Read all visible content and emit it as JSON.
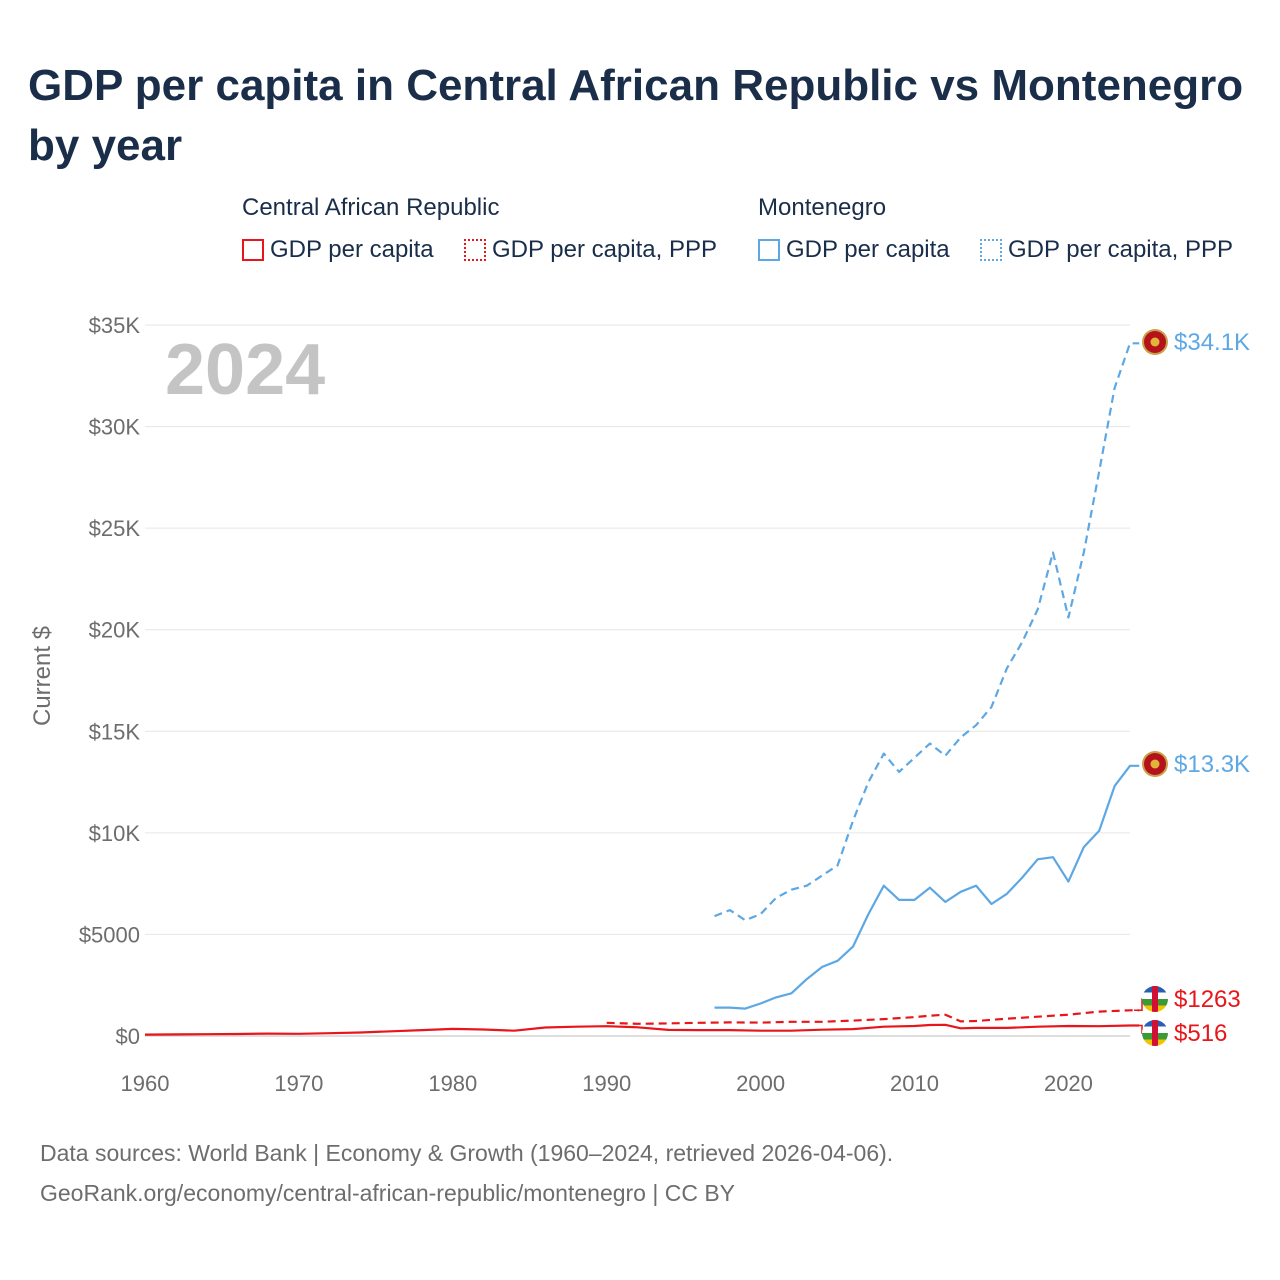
{
  "chart_data": {
    "type": "line",
    "title": "GDP per capita in Central African Republic vs Montenegro by year",
    "ylabel": "Current $",
    "xlabel": "",
    "xlim": [
      1960,
      2025
    ],
    "ylim": [
      0,
      35000
    ],
    "x_ticks": [
      1960,
      1970,
      1980,
      1990,
      2000,
      2010,
      2020
    ],
    "x_tick_labels": [
      "1960",
      "1970",
      "1980",
      "1990",
      "2000",
      "2010",
      "2020"
    ],
    "y_ticks": [
      0,
      5000,
      10000,
      15000,
      20000,
      25000,
      30000,
      35000
    ],
    "y_tick_labels": [
      "$0",
      "$5000",
      "$10K",
      "$15K",
      "$20K",
      "$25K",
      "$30K",
      "$35K"
    ],
    "year_watermark": "2024",
    "legend": {
      "groups": [
        {
          "name": "Central African Republic",
          "color": "#e8161b",
          "items": [
            "GDP per capita",
            "GDP per capita, PPP"
          ]
        },
        {
          "name": "Montenegro",
          "color": "#5da8e4",
          "items": [
            "GDP per capita",
            "GDP per capita, PPP"
          ]
        }
      ]
    },
    "series": [
      {
        "name": "Central African Republic – GDP per capita",
        "color": "#e8161b",
        "dash": false,
        "x": [
          1960,
          1962,
          1964,
          1966,
          1968,
          1970,
          1972,
          1974,
          1976,
          1978,
          1980,
          1982,
          1984,
          1986,
          1988,
          1990,
          1992,
          1994,
          1996,
          1998,
          2000,
          2002,
          2004,
          2006,
          2008,
          2010,
          2011,
          2012,
          2013,
          2014,
          2016,
          2018,
          2020,
          2022,
          2024
        ],
        "y": [
          70,
          80,
          90,
          100,
          120,
          110,
          140,
          170,
          230,
          290,
          350,
          320,
          260,
          420,
          460,
          480,
          430,
          300,
          290,
          290,
          260,
          260,
          310,
          340,
          460,
          490,
          540,
          550,
          380,
          400,
          400,
          460,
          490,
          480,
          516
        ],
        "end_label": "$516"
      },
      {
        "name": "Central African Republic – GDP per capita, PPP",
        "color": "#e8161b",
        "dash": true,
        "x": [
          1990,
          1992,
          1994,
          1996,
          1998,
          2000,
          2002,
          2004,
          2006,
          2008,
          2010,
          2011,
          2012,
          2013,
          2014,
          2016,
          2018,
          2020,
          2022,
          2024
        ],
        "y": [
          650,
          600,
          620,
          650,
          670,
          660,
          700,
          700,
          760,
          830,
          930,
          1000,
          1050,
          720,
          740,
          850,
          950,
          1050,
          1200,
          1263
        ],
        "end_label": "$1263"
      },
      {
        "name": "Montenegro – GDP per capita",
        "color": "#5da8e4",
        "dash": false,
        "x": [
          1997,
          1998,
          1999,
          2000,
          2001,
          2002,
          2003,
          2004,
          2005,
          2006,
          2007,
          2008,
          2009,
          2010,
          2011,
          2012,
          2013,
          2014,
          2015,
          2016,
          2017,
          2018,
          2019,
          2020,
          2021,
          2022,
          2023,
          2024
        ],
        "y": [
          1400,
          1400,
          1350,
          1600,
          1900,
          2100,
          2800,
          3400,
          3700,
          4400,
          6000,
          7400,
          6700,
          6700,
          7300,
          6600,
          7100,
          7400,
          6500,
          7000,
          7800,
          8700,
          8800,
          7600,
          9300,
          10100,
          12300,
          13300
        ],
        "end_label": "$13.3K"
      },
      {
        "name": "Montenegro – GDP per capita, PPP",
        "color": "#5da8e4",
        "dash": true,
        "x": [
          1997,
          1998,
          1999,
          2000,
          2001,
          2002,
          2003,
          2004,
          2005,
          2006,
          2007,
          2008,
          2009,
          2010,
          2011,
          2012,
          2013,
          2014,
          2015,
          2016,
          2017,
          2018,
          2019,
          2020,
          2021,
          2022,
          2023,
          2024
        ],
        "y": [
          5900,
          6200,
          5700,
          6000,
          6800,
          7200,
          7400,
          7900,
          8400,
          10600,
          12500,
          13900,
          13000,
          13700,
          14400,
          13800,
          14700,
          15300,
          16200,
          18100,
          19400,
          21000,
          23800,
          20600,
          23800,
          27800,
          31900,
          34100
        ],
        "end_label": "$34.1K"
      }
    ]
  },
  "footer": {
    "line1": "Data sources: World Bank | Economy & Growth (1960–2024, retrieved 2026-04-06).",
    "line2": "GeoRank.org/economy/central-african-republic/montenegro | CC BY"
  }
}
